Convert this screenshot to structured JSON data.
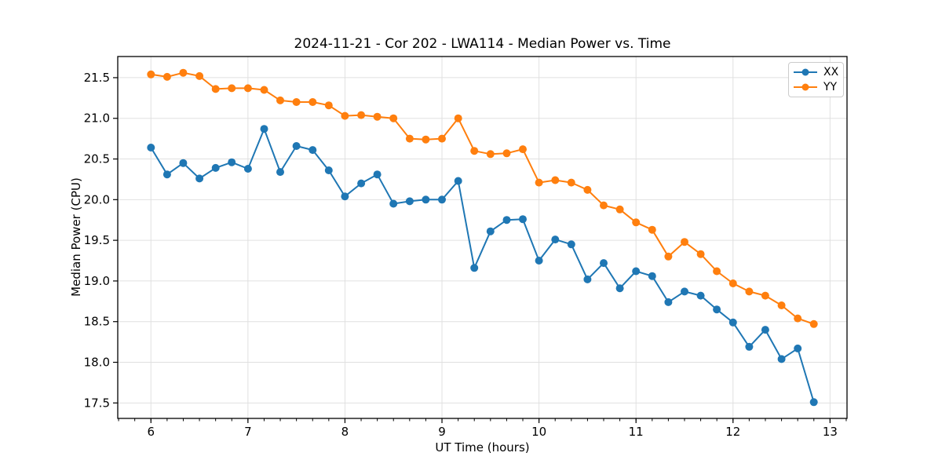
{
  "chart_data": {
    "type": "line",
    "title": "2024-11-21 - Cor 202 - LWA114 - Median Power vs. Time",
    "xlabel": "UT Time (hours)",
    "ylabel": "Median Power (CPU)",
    "xlim": [
      5.658,
      13.175
    ],
    "ylim": [
      17.31,
      21.76
    ],
    "x_ticks": [
      6,
      7,
      8,
      9,
      10,
      11,
      12,
      13
    ],
    "x_tick_labels": [
      "6",
      "7",
      "8",
      "9",
      "10",
      "11",
      "12",
      "13"
    ],
    "x_minor_tick_step": 0.166667,
    "y_ticks": [
      17.5,
      18.0,
      18.5,
      19.0,
      19.5,
      20.0,
      20.5,
      21.0,
      21.5
    ],
    "y_tick_labels": [
      "17.5",
      "18.0",
      "18.5",
      "19.0",
      "19.5",
      "20.0",
      "20.5",
      "21.0",
      "21.5"
    ],
    "grid": true,
    "grid_color": "#e0e0e0",
    "legend_position": "upper right",
    "x": [
      6.0,
      6.167,
      6.333,
      6.5,
      6.667,
      6.833,
      7.0,
      7.167,
      7.333,
      7.5,
      7.667,
      7.833,
      8.0,
      8.167,
      8.333,
      8.5,
      8.667,
      8.833,
      9.0,
      9.167,
      9.333,
      9.5,
      9.667,
      9.833,
      10.0,
      10.167,
      10.333,
      10.5,
      10.667,
      10.833,
      11.0,
      11.167,
      11.333,
      11.5,
      11.667,
      11.833,
      12.0,
      12.167,
      12.333,
      12.5,
      12.667,
      12.833
    ],
    "series": [
      {
        "name": "XX",
        "color": "#1f77b4",
        "values": [
          20.64,
          20.31,
          20.45,
          20.26,
          20.39,
          20.46,
          20.38,
          20.87,
          20.34,
          20.66,
          20.61,
          20.36,
          20.04,
          20.2,
          20.31,
          19.95,
          19.98,
          20.0,
          20.0,
          20.23,
          19.16,
          19.61,
          19.75,
          19.76,
          19.25,
          19.51,
          19.45,
          19.02,
          19.22,
          18.91,
          19.12,
          19.06,
          18.74,
          18.87,
          18.82,
          18.65,
          18.49,
          18.19,
          18.4,
          18.04,
          18.17,
          17.51
        ]
      },
      {
        "name": "YY",
        "color": "#ff7f0e",
        "values": [
          21.54,
          21.51,
          21.56,
          21.52,
          21.36,
          21.37,
          21.37,
          21.35,
          21.22,
          21.2,
          21.2,
          21.16,
          21.03,
          21.04,
          21.02,
          21.0,
          20.75,
          20.74,
          20.75,
          21.0,
          20.6,
          20.56,
          20.57,
          20.62,
          20.21,
          20.24,
          20.21,
          20.12,
          19.93,
          19.88,
          19.72,
          19.63,
          19.3,
          19.48,
          19.33,
          19.12,
          18.97,
          18.87,
          18.82,
          18.7,
          18.54,
          18.47
        ]
      }
    ]
  }
}
